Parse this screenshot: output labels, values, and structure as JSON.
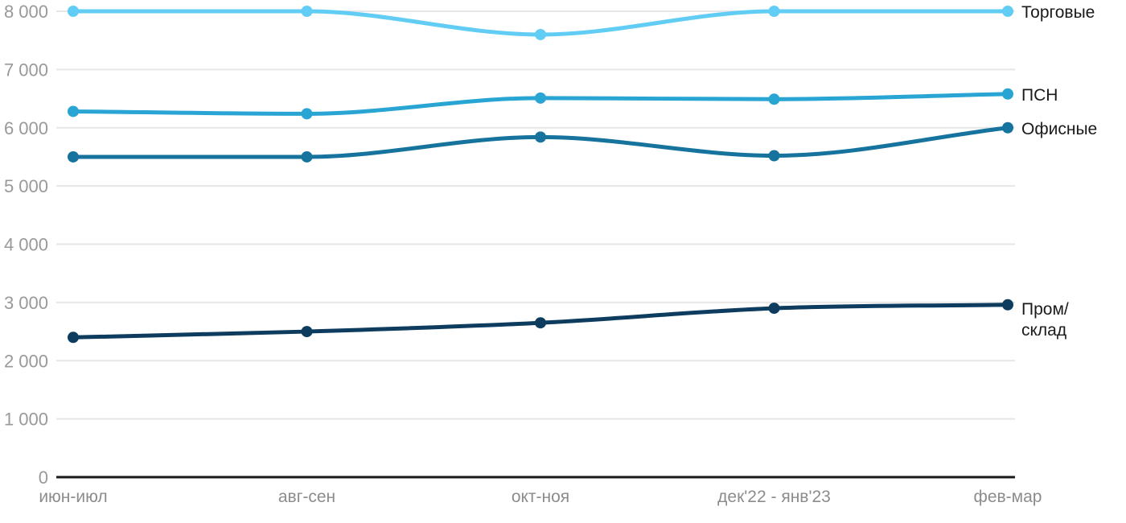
{
  "chart_data": {
    "type": "line",
    "title": "",
    "xlabel": "",
    "ylabel": "",
    "categories": [
      "июн-июл",
      "авг-сен",
      "окт-ноя",
      "дек'22 - янв'23",
      "фев-мар"
    ],
    "series": [
      {
        "key": "torgovye",
        "name": "Торговые",
        "label_lines": [
          "Торговые"
        ],
        "color": "#62cdf4",
        "values": [
          8000,
          8000,
          7600,
          8000,
          8000
        ]
      },
      {
        "key": "psn",
        "name": "ПСН",
        "label_lines": [
          "ПСН"
        ],
        "color": "#29a5d3",
        "values": [
          6280,
          6240,
          6510,
          6490,
          6580
        ]
      },
      {
        "key": "ofisnye",
        "name": "Офисные",
        "label_lines": [
          "Офисные"
        ],
        "color": "#16739e",
        "values": [
          5500,
          5500,
          5840,
          5520,
          6000
        ]
      },
      {
        "key": "prom-sklad",
        "name": "Пром/склад",
        "label_lines": [
          "Пром/",
          "склад"
        ],
        "color": "#0d3c5f",
        "values": [
          2400,
          2500,
          2650,
          2900,
          2960
        ]
      }
    ],
    "ylim": [
      0,
      8000
    ],
    "ytick_step": 1000,
    "ytick_labels": [
      "0",
      "1 000",
      "2 000",
      "3 000",
      "4 000",
      "5 000",
      "6 000",
      "7 000",
      "8 000"
    ],
    "grid": true,
    "legend_position": "right-end-of-lines"
  },
  "styles": {
    "background": "#ffffff",
    "grid_color": "#e6e6e6",
    "axis_color": "#1a1a1a",
    "ytick_color": "#999999",
    "xtick_color": "#8c8c8c",
    "series_label_color": "#1a1a1a"
  }
}
